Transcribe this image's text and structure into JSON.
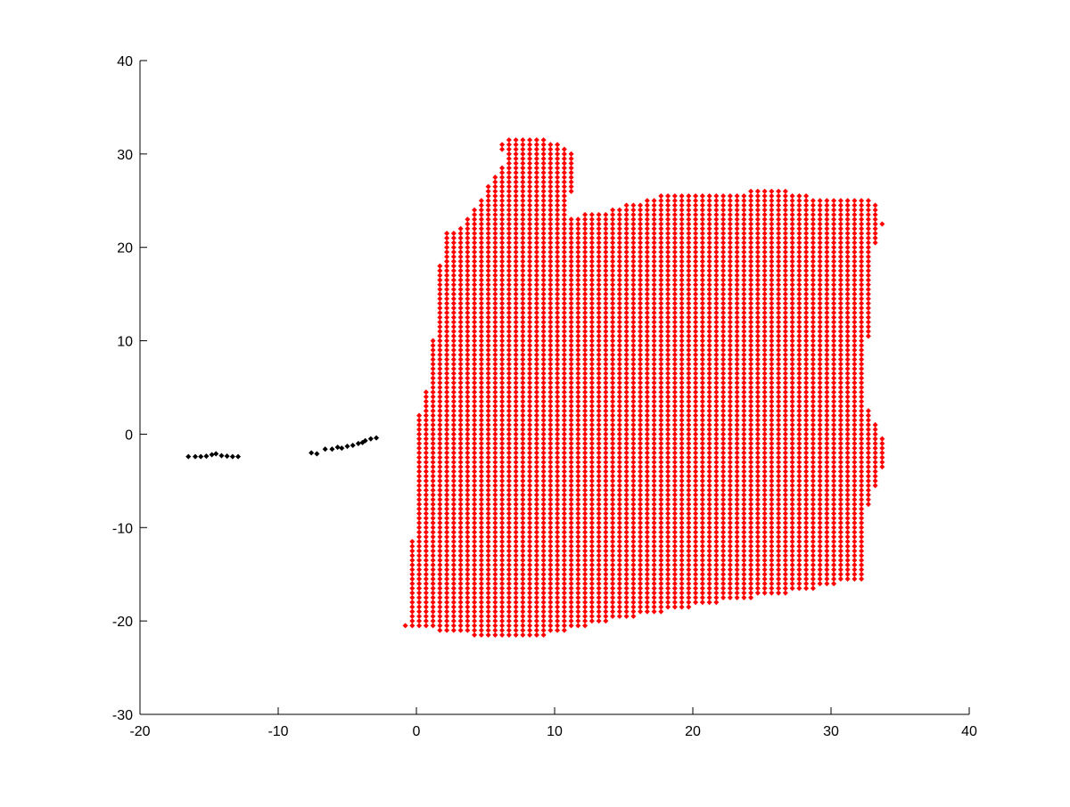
{
  "chart_data": {
    "type": "scatter",
    "title": "",
    "xlabel": "",
    "ylabel": "",
    "xlim": [
      -20,
      40
    ],
    "ylim": [
      -30,
      40
    ],
    "xticks": [
      "-20",
      "-10",
      "0",
      "10",
      "20",
      "30",
      "40"
    ],
    "yticks": [
      "-30",
      "-20",
      "-10",
      "0",
      "10",
      "20",
      "30",
      "40"
    ],
    "grid": false,
    "box": "left-bottom",
    "series": [
      {
        "color": "#ff0000",
        "marker": "diamond",
        "region": {
          "polygon": [
            [
              -0.8,
              -20.5
            ],
            [
              5.5,
              -21.9
            ],
            [
              8.0,
              -22.0
            ],
            [
              14.0,
              -20.0
            ],
            [
              22.0,
              -18.0
            ],
            [
              27.0,
              -17.0
            ],
            [
              32.5,
              -15.5
            ],
            [
              32.7,
              -8.0
            ],
            [
              33.4,
              -5.0
            ],
            [
              34.0,
              -3.0
            ],
            [
              34.0,
              -0.5
            ],
            [
              33.4,
              0.5
            ],
            [
              32.7,
              3.0
            ],
            [
              32.7,
              10.0
            ],
            [
              32.8,
              16.0
            ],
            [
              33.2,
              20.0
            ],
            [
              33.8,
              22.5
            ],
            [
              33.2,
              25.0
            ],
            [
              31.5,
              25.5
            ],
            [
              28.5,
              25.5
            ],
            [
              25.5,
              26.5
            ],
            [
              22.0,
              25.5
            ],
            [
              20.5,
              26.0
            ],
            [
              17.5,
              25.5
            ],
            [
              14.0,
              24.0
            ],
            [
              11.0,
              23.3
            ],
            [
              11.3,
              27.0
            ],
            [
              11.6,
              29.5
            ],
            [
              10.5,
              31.0
            ],
            [
              8.0,
              32.0
            ],
            [
              6.0,
              31.3
            ],
            [
              6.5,
              29.0
            ],
            [
              5.5,
              27.5
            ],
            [
              5.2,
              26.5
            ],
            [
              4.0,
              24.0
            ],
            [
              3.0,
              22.0
            ],
            [
              2.0,
              21.5
            ],
            [
              1.5,
              16.0
            ],
            [
              1.2,
              10.0
            ],
            [
              0.8,
              5.0
            ],
            [
              0.0,
              1.5
            ],
            [
              -0.1,
              -8.0
            ],
            [
              -0.4,
              -13.0
            ],
            [
              -0.5,
              -18.0
            ]
          ],
          "x_step": 0.5,
          "y_step": 0.5
        }
      },
      {
        "color": "#000000",
        "marker": "diamond",
        "x": [
          -16.5,
          -16.0,
          -15.6,
          -15.2,
          -14.8,
          -14.5,
          -14.1,
          -13.7,
          -13.3,
          -12.9,
          -7.6,
          -7.2,
          -6.6,
          -6.1,
          -5.7,
          -5.4,
          -5.0,
          -4.6,
          -4.2,
          -3.9,
          -3.7,
          -3.3,
          -2.9
        ],
        "y": [
          -2.4,
          -2.4,
          -2.4,
          -2.35,
          -2.2,
          -2.1,
          -2.3,
          -2.35,
          -2.4,
          -2.4,
          -2.0,
          -2.1,
          -1.6,
          -1.6,
          -1.4,
          -1.5,
          -1.3,
          -1.2,
          -1.0,
          -0.9,
          -0.7,
          -0.5,
          -0.4
        ]
      }
    ]
  }
}
